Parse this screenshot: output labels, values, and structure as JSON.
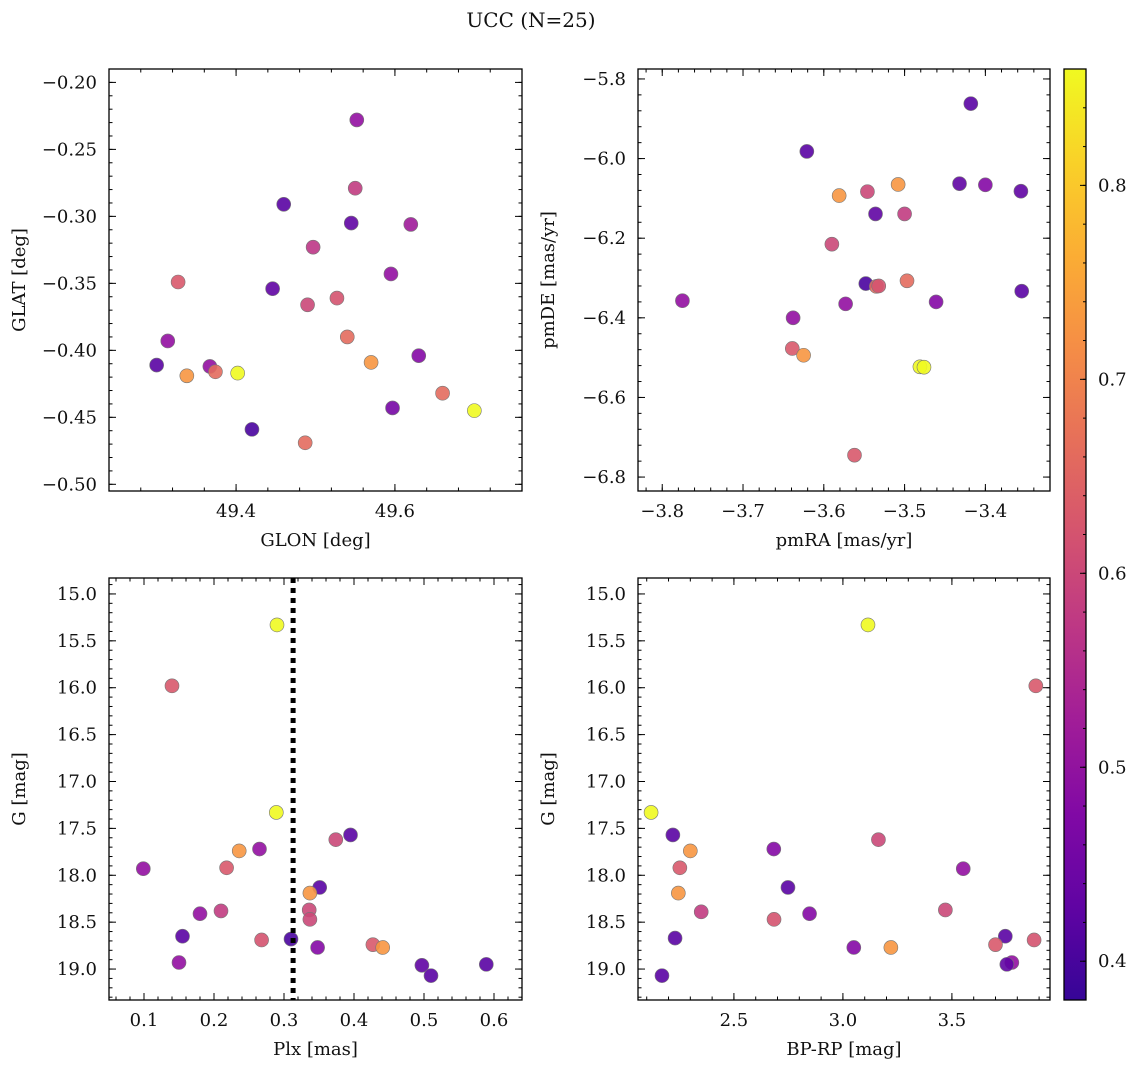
{
  "title": "UCC (N=25)",
  "colormap": {
    "name": "plasma",
    "vmin": 0.38,
    "vmax": 0.86,
    "ticks": [
      0.4,
      0.5,
      0.6,
      0.7,
      0.8
    ],
    "tick_labels": [
      "0.4",
      "0.5",
      "0.6",
      "0.7",
      "0.8"
    ]
  },
  "chart_data": [
    {
      "id": "glon-glat",
      "type": "scatter",
      "xlabel": "GLON [deg]",
      "ylabel": "GLAT [deg]",
      "xlim": [
        49.24,
        49.76
      ],
      "ylim": [
        -0.505,
        -0.19
      ],
      "xticks": [
        49.4,
        49.6
      ],
      "xtick_labels": [
        "49.4",
        "49.6"
      ],
      "yticks": [
        -0.5,
        -0.45,
        -0.4,
        -0.35,
        -0.3,
        -0.25,
        -0.2
      ],
      "ytick_labels": [
        "−0.50",
        "−0.45",
        "−0.40",
        "−0.35",
        "−0.30",
        "−0.25",
        "−0.20"
      ],
      "x": [
        49.552,
        49.46,
        49.55,
        49.545,
        49.62,
        49.497,
        49.595,
        49.327,
        49.446,
        49.49,
        49.527,
        49.314,
        49.3,
        49.367,
        49.374,
        49.338,
        49.402,
        49.54,
        49.57,
        49.63,
        49.66,
        49.597,
        49.42,
        49.487,
        49.7
      ],
      "y": [
        -0.228,
        -0.291,
        -0.279,
        -0.305,
        -0.306,
        -0.323,
        -0.343,
        -0.349,
        -0.354,
        -0.366,
        -0.361,
        -0.393,
        -0.411,
        -0.412,
        -0.416,
        -0.419,
        -0.417,
        -0.39,
        -0.409,
        -0.404,
        -0.432,
        -0.443,
        -0.459,
        -0.469,
        -0.445
      ],
      "c": [
        0.5,
        0.42,
        0.58,
        0.43,
        0.52,
        0.57,
        0.5,
        0.63,
        0.43,
        0.6,
        0.62,
        0.5,
        0.42,
        0.5,
        0.66,
        0.73,
        0.86,
        0.66,
        0.73,
        0.48,
        0.66,
        0.46,
        0.4,
        0.66,
        0.86
      ]
    },
    {
      "id": "pm",
      "type": "scatter",
      "xlabel": "pmRA [mas/yr]",
      "ylabel": "pmDE [mas/yr]",
      "xlim": [
        -3.83,
        -3.32
      ],
      "ylim": [
        -6.835,
        -5.775
      ],
      "xticks": [
        -3.8,
        -3.7,
        -3.6,
        -3.5,
        -3.4
      ],
      "xtick_labels": [
        "−3.8",
        "−3.7",
        "−3.6",
        "−3.5",
        "−3.4"
      ],
      "yticks": [
        -6.8,
        -6.6,
        -6.4,
        -6.2,
        -6.0,
        -5.8
      ],
      "ytick_labels": [
        "−6.8",
        "−6.6",
        "−6.4",
        "−6.2",
        "−6.0",
        "−5.8"
      ],
      "x": [
        -3.418,
        -3.621,
        -3.581,
        -3.546,
        -3.508,
        -3.432,
        -3.4,
        -3.356,
        -3.536,
        -3.5,
        -3.59,
        -3.775,
        -3.548,
        -3.535,
        -3.532,
        -3.497,
        -3.573,
        -3.461,
        -3.355,
        -3.638,
        -3.639,
        -3.625,
        -3.481,
        -3.476,
        -3.562
      ],
      "y": [
        -5.862,
        -5.982,
        -6.093,
        -6.083,
        -6.065,
        -6.063,
        -6.066,
        -6.082,
        -6.139,
        -6.139,
        -6.215,
        -6.357,
        -6.314,
        -6.321,
        -6.32,
        -6.307,
        -6.365,
        -6.36,
        -6.333,
        -6.4,
        -6.477,
        -6.494,
        -6.523,
        -6.524,
        -6.745
      ],
      "c": [
        0.42,
        0.42,
        0.73,
        0.6,
        0.73,
        0.43,
        0.48,
        0.43,
        0.43,
        0.58,
        0.6,
        0.5,
        0.4,
        0.66,
        0.62,
        0.66,
        0.5,
        0.48,
        0.42,
        0.5,
        0.63,
        0.73,
        0.86,
        0.86,
        0.63
      ]
    },
    {
      "id": "plx-g",
      "type": "scatter",
      "xlabel": "Plx [mas]",
      "ylabel": "G [mag]",
      "xlim": [
        0.05,
        0.64
      ],
      "ylim": [
        19.33,
        14.83
      ],
      "y_inverted": true,
      "xticks": [
        0.1,
        0.2,
        0.3,
        0.4,
        0.5,
        0.6
      ],
      "xtick_labels": [
        "0.1",
        "0.2",
        "0.3",
        "0.4",
        "0.5",
        "0.6"
      ],
      "yticks": [
        15.0,
        15.5,
        16.0,
        16.5,
        17.0,
        17.5,
        18.0,
        18.5,
        19.0
      ],
      "ytick_labels": [
        "15.0",
        "15.5",
        "16.0",
        "16.5",
        "17.0",
        "17.5",
        "18.0",
        "18.5",
        "19.0"
      ],
      "vline": 0.313,
      "x": [
        0.29,
        0.14,
        0.289,
        0.395,
        0.374,
        0.236,
        0.265,
        0.099,
        0.218,
        0.351,
        0.337,
        0.18,
        0.21,
        0.336,
        0.337,
        0.155,
        0.268,
        0.31,
        0.348,
        0.427,
        0.441,
        0.15,
        0.497,
        0.589,
        0.51
      ],
      "y": [
        15.33,
        15.98,
        17.33,
        17.57,
        17.62,
        17.74,
        17.72,
        17.93,
        17.92,
        18.13,
        18.19,
        18.41,
        18.38,
        18.37,
        18.47,
        18.65,
        18.69,
        18.68,
        18.77,
        18.74,
        18.77,
        18.93,
        18.96,
        18.95,
        19.07
      ],
      "c": [
        0.86,
        0.63,
        0.86,
        0.42,
        0.6,
        0.73,
        0.5,
        0.5,
        0.63,
        0.42,
        0.73,
        0.5,
        0.58,
        0.6,
        0.6,
        0.42,
        0.62,
        0.4,
        0.48,
        0.63,
        0.73,
        0.5,
        0.43,
        0.42,
        0.42
      ]
    },
    {
      "id": "cmd",
      "type": "scatter",
      "xlabel": "BP-RP [mag]",
      "ylabel": "G [mag]",
      "xlim": [
        2.06,
        3.95
      ],
      "ylim": [
        19.33,
        14.83
      ],
      "y_inverted": true,
      "xticks": [
        2.5,
        3.0,
        3.5
      ],
      "xtick_labels": [
        "2.5",
        "3.0",
        "3.5"
      ],
      "yticks": [
        15.0,
        15.5,
        16.0,
        16.5,
        17.0,
        17.5,
        18.0,
        18.5,
        19.0
      ],
      "ytick_labels": [
        "15.0",
        "15.5",
        "16.0",
        "16.5",
        "17.0",
        "17.5",
        "18.0",
        "18.5",
        "19.0"
      ],
      "x": [
        3.115,
        3.885,
        2.12,
        2.22,
        3.163,
        2.3,
        2.683,
        2.252,
        3.552,
        2.748,
        2.245,
        2.847,
        2.35,
        3.47,
        2.684,
        3.745,
        2.23,
        3.7,
        3.877,
        3.05,
        3.22,
        3.775,
        3.752,
        2.17
      ],
      "y": [
        15.33,
        15.98,
        17.33,
        17.57,
        17.62,
        17.74,
        17.72,
        17.92,
        17.93,
        18.13,
        18.19,
        18.41,
        18.39,
        18.37,
        18.47,
        18.65,
        18.67,
        18.74,
        18.69,
        18.77,
        18.77,
        18.93,
        18.95,
        19.07
      ],
      "c": [
        0.86,
        0.63,
        0.86,
        0.42,
        0.6,
        0.73,
        0.48,
        0.63,
        0.5,
        0.42,
        0.73,
        0.48,
        0.58,
        0.6,
        0.62,
        0.42,
        0.42,
        0.63,
        0.62,
        0.48,
        0.73,
        0.5,
        0.43,
        0.42
      ]
    }
  ]
}
